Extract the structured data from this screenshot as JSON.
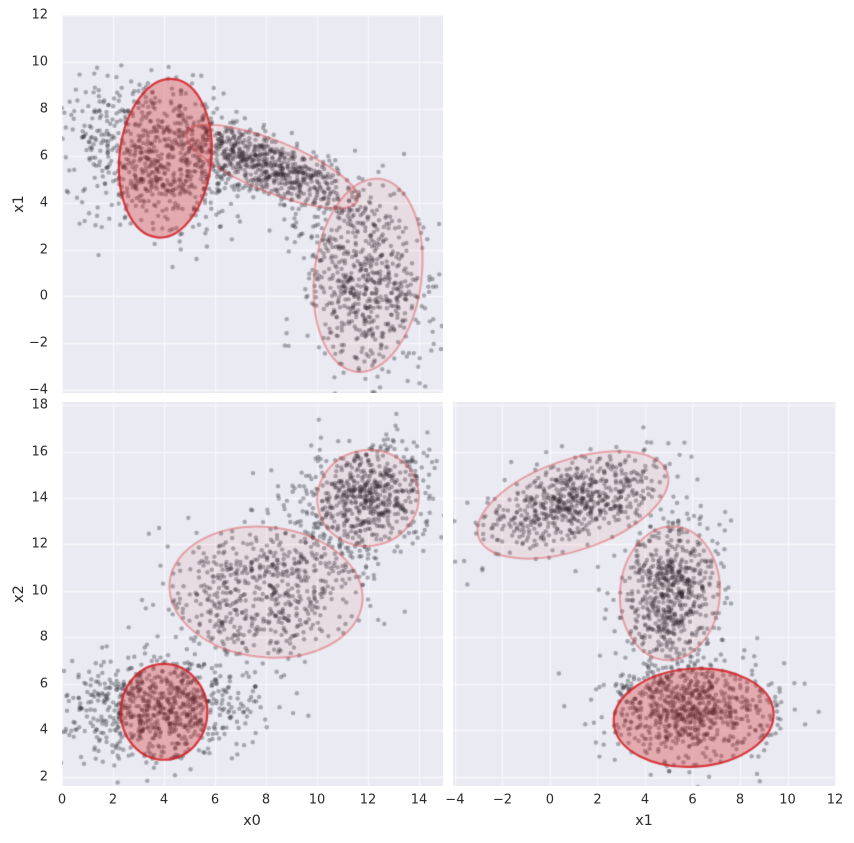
{
  "figure": {
    "background": "#ffffff",
    "panel_background": "#eaeaf2",
    "grid_color": "#f7f7fa",
    "grid_width": 1.3,
    "point": {
      "color": "#26262e",
      "alpha": 0.35,
      "radius": 2.2
    },
    "tick_color": "#2b2b2b",
    "label_color": "#2b2b2b",
    "ellipse_styles": {
      "strong": {
        "fill": "rgba(214,39,40,0.33)",
        "stroke": "rgba(211,32,36,0.85)",
        "line_width": 2.2
      },
      "light": {
        "fill": "rgba(214,39,40,0.07)",
        "stroke": "rgba(222,78,82,0.45)",
        "line_width": 2.0
      }
    }
  },
  "axis_labels": {
    "top_left_y": "x1",
    "bottom_left_y": "x2",
    "bottom_left_x": "x0",
    "bottom_right_x": "x1"
  },
  "chart_data": [
    {
      "type": "scatter",
      "panel": "x0-vs-x1",
      "xlabel": "",
      "ylabel": "x1",
      "xlim": [
        0,
        14.94
      ],
      "ylim": [
        -4.13,
        12.02
      ],
      "xticks": [
        0,
        2,
        4,
        6,
        8,
        10,
        12,
        14
      ],
      "yticks": [
        -4,
        -2,
        0,
        2,
        4,
        6,
        8,
        10,
        12
      ],
      "show_xticklabels": false,
      "show_yticklabels": true,
      "grid": true,
      "seed": 101,
      "clusters": [
        {
          "n": 760,
          "mean": [
            3.9,
            5.9
          ],
          "std": [
            1.75,
            1.55
          ],
          "corr": -0.2
        },
        {
          "n": 620,
          "mean": [
            8.25,
            5.5
          ],
          "std": [
            1.75,
            1.0
          ],
          "corr": -0.75
        },
        {
          "n": 620,
          "mean": [
            11.9,
            0.7
          ],
          "std": [
            1.25,
            1.95
          ],
          "corr": -0.2
        }
      ],
      "ellipses": [
        {
          "center": [
            8.25,
            5.55
          ],
          "semi_x": 3.6,
          "semi_y": 1.1,
          "rotation_deg": 22,
          "weight": "light"
        },
        {
          "center": [
            12.0,
            0.9
          ],
          "semi_x": 2.1,
          "semi_y": 4.15,
          "rotation_deg": 7,
          "weight": "light"
        },
        {
          "center": [
            4.05,
            5.9
          ],
          "semi_x": 1.8,
          "semi_y": 3.4,
          "rotation_deg": 6,
          "weight": "strong"
        }
      ]
    },
    {
      "type": "scatter",
      "panel": "x0-vs-x2",
      "xlabel": "x0",
      "ylabel": "x2",
      "xlim": [
        0,
        14.94
      ],
      "ylim": [
        1.61,
        18.13
      ],
      "xticks": [
        0,
        2,
        4,
        6,
        8,
        10,
        12,
        14
      ],
      "yticks": [
        2,
        4,
        6,
        8,
        10,
        12,
        14,
        16,
        18
      ],
      "show_xticklabels": true,
      "show_yticklabels": true,
      "grid": true,
      "seed": 202,
      "clusters": [
        {
          "n": 760,
          "mean": [
            3.8,
            5.0
          ],
          "std": [
            1.75,
            1.1
          ],
          "corr": 0.05
        },
        {
          "n": 620,
          "mean": [
            8.0,
            9.9
          ],
          "std": [
            1.85,
            1.5
          ],
          "corr": 0.15
        },
        {
          "n": 620,
          "mean": [
            11.9,
            14.0
          ],
          "std": [
            1.3,
            1.15
          ],
          "corr": 0.25
        }
      ],
      "ellipses": [
        {
          "center": [
            8.0,
            9.95
          ],
          "semi_x": 3.8,
          "semi_y": 2.8,
          "rotation_deg": 6,
          "weight": "light"
        },
        {
          "center": [
            12.0,
            14.0
          ],
          "semi_x": 2.0,
          "semi_y": 2.06,
          "rotation_deg": -15,
          "weight": "light"
        },
        {
          "center": [
            4.0,
            4.8
          ],
          "semi_x": 1.7,
          "semi_y": 2.06,
          "rotation_deg": 0,
          "weight": "strong"
        }
      ]
    },
    {
      "type": "scatter",
      "panel": "x1-vs-x2",
      "xlabel": "x1",
      "ylabel": "",
      "xlim": [
        -4.08,
        12.04
      ],
      "ylim": [
        1.61,
        18.13
      ],
      "xticks": [
        -4,
        -2,
        0,
        2,
        4,
        6,
        8,
        10,
        12
      ],
      "yticks": [
        2,
        4,
        6,
        8,
        10,
        12,
        14,
        16,
        18
      ],
      "show_xticklabels": true,
      "show_yticklabels": false,
      "grid": true,
      "seed": 303,
      "clusters": [
        {
          "n": 760,
          "mean": [
            5.9,
            5.0
          ],
          "std": [
            1.6,
            1.1
          ],
          "corr": -0.05
        },
        {
          "n": 620,
          "mean": [
            5.1,
            9.9
          ],
          "std": [
            1.0,
            1.5
          ],
          "corr": 0.12
        },
        {
          "n": 620,
          "mean": [
            0.85,
            13.8
          ],
          "std": [
            1.95,
            1.0
          ],
          "corr": 0.55
        }
      ],
      "ellipses": [
        {
          "center": [
            0.97,
            13.7
          ],
          "semi_x": 4.2,
          "semi_y": 1.94,
          "rotation_deg": -19,
          "weight": "light"
        },
        {
          "center": [
            5.05,
            9.9
          ],
          "semi_x": 2.1,
          "semi_y": 2.88,
          "rotation_deg": 4,
          "weight": "light"
        },
        {
          "center": [
            6.05,
            4.55
          ],
          "semi_x": 3.37,
          "semi_y": 2.11,
          "rotation_deg": -4,
          "weight": "strong"
        }
      ]
    }
  ]
}
